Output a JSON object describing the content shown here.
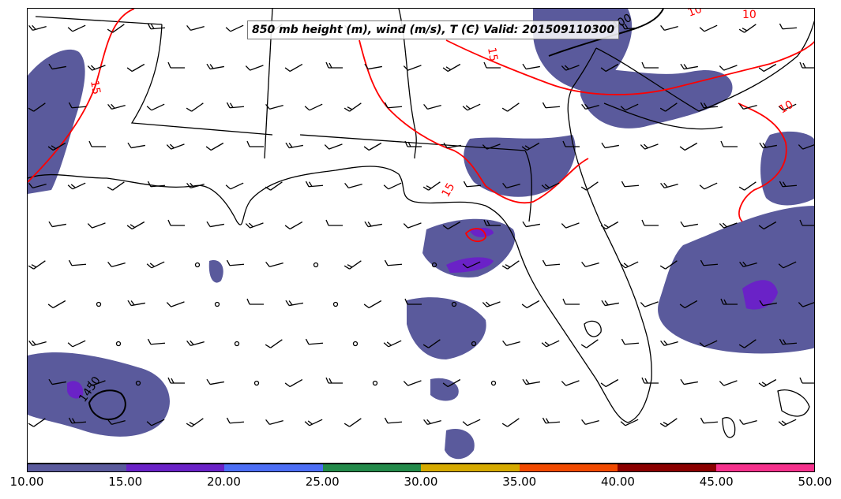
{
  "title": "850 mb height (m), wind (m/s), T (C) Valid: 201509110300",
  "colorbar": {
    "colors": [
      "#5a5a9c",
      "#6a22c7",
      "#4c6ef5",
      "#238a4a",
      "#d6aa00",
      "#f24a00",
      "#8b0000",
      "#f5318c"
    ],
    "tick_labels": [
      "10.00",
      "15.00",
      "20.00",
      "25.00",
      "30.00",
      "35.00",
      "40.00",
      "45.00",
      "50.00"
    ]
  },
  "contours": {
    "temperature_color": "#ff0000",
    "height_color": "#000000",
    "temperature_labels": [
      "15",
      "15",
      "15",
      "10",
      "10",
      "10"
    ],
    "height_labels": [
      "1450",
      "1400"
    ]
  },
  "colors": {
    "shading": "#5a5a9c",
    "heavy_shading": "#6a22c7",
    "coastline": "#000000",
    "barbs": "#000000"
  }
}
